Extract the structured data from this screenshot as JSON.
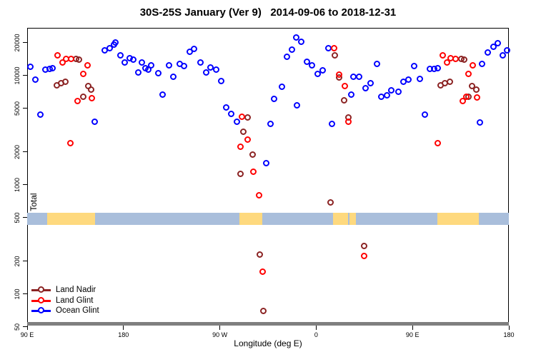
{
  "title": "30S-25S January (Ver 9)   2014-09-06 to 2018-12-31",
  "axes": {
    "y_label": "N Total",
    "x_label": "Longitude (deg E)",
    "y_ticks": [
      20000,
      10000,
      5000,
      2000,
      1000,
      500,
      200,
      100,
      50
    ],
    "x_ticks": [
      {
        "lon": 90,
        "label": "90 E"
      },
      {
        "lon": 180,
        "label": "180"
      },
      {
        "lon": 270,
        "label": "90 W"
      },
      {
        "lon": 360,
        "label": "0"
      },
      {
        "lon": 450,
        "label": "90 E"
      },
      {
        "lon": 540,
        "label": "180"
      }
    ]
  },
  "legend": [
    {
      "name": "Land Nadir",
      "color": "#8b2323"
    },
    {
      "name": "Land Glint",
      "color": "#ff0000"
    },
    {
      "name": "Ocean Glint",
      "color": "#0000ff"
    }
  ],
  "map_band": {
    "ocean_color": "#a9bedb",
    "land_color": "#fed97e",
    "land_patches_lon": [
      [
        109,
        153.5
      ],
      [
        288,
        310
      ],
      [
        376,
        390
      ],
      [
        391,
        397
      ],
      [
        473,
        512
      ]
    ]
  },
  "bottom_bar_color": "#7f7f7f",
  "chart_data": {
    "type": "scatter",
    "x_domain": [
      90,
      540
    ],
    "y_scale": "log",
    "y_domain": [
      50,
      23000
    ],
    "series": [
      {
        "name": "Ocean Glint",
        "color": "#0000ff",
        "points": [
          [
            93.3,
            12000
          ],
          [
            98,
            9100
          ],
          [
            102.7,
            4360
          ],
          [
            107.4,
            11300
          ],
          [
            111.4,
            11400
          ],
          [
            114,
            11600
          ],
          [
            153.4,
            3750
          ],
          [
            162.8,
            16900
          ],
          [
            167.4,
            17700
          ],
          [
            171.4,
            19100
          ],
          [
            172.8,
            19900
          ],
          [
            177.5,
            15200
          ],
          [
            181.5,
            13100
          ],
          [
            186.1,
            14300
          ],
          [
            189.5,
            13900
          ],
          [
            194.2,
            10600
          ],
          [
            197.5,
            13100
          ],
          [
            200.8,
            11600
          ],
          [
            203.5,
            11300
          ],
          [
            206.2,
            12300
          ],
          [
            212.9,
            10400
          ],
          [
            216.9,
            6650
          ],
          [
            222.9,
            12300
          ],
          [
            226.9,
            9690
          ],
          [
            232.9,
            12700
          ],
          [
            236.9,
            12200
          ],
          [
            242.3,
            16400
          ],
          [
            246.3,
            17400
          ],
          [
            252.3,
            13100
          ],
          [
            257.6,
            10600
          ],
          [
            261.6,
            11800
          ],
          [
            266.9,
            11300
          ],
          [
            271.6,
            8850
          ],
          [
            276.3,
            5070
          ],
          [
            281,
            4430
          ],
          [
            286.3,
            3750
          ],
          [
            313.6,
            1570
          ],
          [
            317.6,
            3590
          ],
          [
            321,
            6070
          ],
          [
            328.3,
            7850
          ],
          [
            333,
            14800
          ],
          [
            337.6,
            17200
          ],
          [
            341.6,
            22200
          ],
          [
            342.3,
            5310
          ],
          [
            346.3,
            20300
          ],
          [
            351.7,
            13300
          ],
          [
            356.3,
            12300
          ],
          [
            361.7,
            10300
          ],
          [
            366.3,
            11100
          ],
          [
            371.7,
            17700
          ],
          [
            375,
            3590
          ],
          [
            393.1,
            6650
          ],
          [
            395.1,
            9690
          ],
          [
            400.4,
            9690
          ],
          [
            406.4,
            7620
          ],
          [
            411.1,
            8470
          ],
          [
            417.1,
            12700
          ],
          [
            421.1,
            6370
          ],
          [
            426.4,
            6560
          ],
          [
            430.4,
            7280
          ],
          [
            437.1,
            7060
          ],
          [
            441.8,
            8730
          ],
          [
            446.4,
            9120
          ],
          [
            451.8,
            12200
          ],
          [
            457.1,
            9260
          ],
          [
            461.8,
            4360
          ],
          [
            466.5,
            11400
          ],
          [
            470.5,
            11400
          ],
          [
            473.8,
            11600
          ],
          [
            513.2,
            3700
          ],
          [
            515.2,
            12700
          ],
          [
            520.5,
            16200
          ],
          [
            525.9,
            18200
          ],
          [
            529.9,
            19700
          ],
          [
            534.5,
            15200
          ],
          [
            538.5,
            17000
          ]
        ]
      },
      {
        "name": "Land Nadir",
        "color": "#8b2323",
        "points": [
          [
            136.1,
            14100
          ],
          [
            138.7,
            13900
          ],
          [
            118,
            8090
          ],
          [
            122,
            8470
          ],
          [
            126.1,
            8730
          ],
          [
            147.4,
            7980
          ],
          [
            150.1,
            7390
          ],
          [
            142.7,
            6370
          ],
          [
            296.3,
            4110
          ],
          [
            292.3,
            3040
          ],
          [
            301,
            1880
          ],
          [
            289.6,
            1250
          ],
          [
            307.6,
            229
          ],
          [
            311,
            70
          ],
          [
            373.7,
            686
          ],
          [
            377.7,
            15200
          ],
          [
            381.7,
            9550
          ],
          [
            386.4,
            5900
          ],
          [
            390.4,
            4110
          ],
          [
            405.1,
            273
          ],
          [
            476.5,
            8090
          ],
          [
            480.5,
            8470
          ],
          [
            485.2,
            8730
          ],
          [
            495.9,
            14100
          ],
          [
            498.5,
            13900
          ],
          [
            502.5,
            6370
          ],
          [
            505.9,
            7980
          ],
          [
            509.9,
            7390
          ]
        ]
      },
      {
        "name": "Land Glint",
        "color": "#ff0000",
        "points": [
          [
            118.7,
            15200
          ],
          [
            123.4,
            13100
          ],
          [
            126.7,
            14100
          ],
          [
            131.4,
            14100
          ],
          [
            142.7,
            10300
          ],
          [
            146.8,
            12300
          ],
          [
            137.4,
            5810
          ],
          [
            150.8,
            6170
          ],
          [
            131,
            2390
          ],
          [
            289.6,
            2220
          ],
          [
            291,
            4170
          ],
          [
            296.3,
            2580
          ],
          [
            301.6,
            1310
          ],
          [
            307,
            796
          ],
          [
            310.3,
            159
          ],
          [
            377,
            17700
          ],
          [
            381.7,
            10100
          ],
          [
            387.1,
            7980
          ],
          [
            390.4,
            3750
          ],
          [
            405.1,
            222
          ],
          [
            478.5,
            15200
          ],
          [
            482.5,
            13100
          ],
          [
            485.8,
            14300
          ],
          [
            490.5,
            14100
          ],
          [
            497.2,
            5810
          ],
          [
            500.5,
            6370
          ],
          [
            502.5,
            10300
          ],
          [
            506.5,
            12300
          ],
          [
            510.5,
            6270
          ],
          [
            473.8,
            2390
          ]
        ]
      }
    ]
  }
}
